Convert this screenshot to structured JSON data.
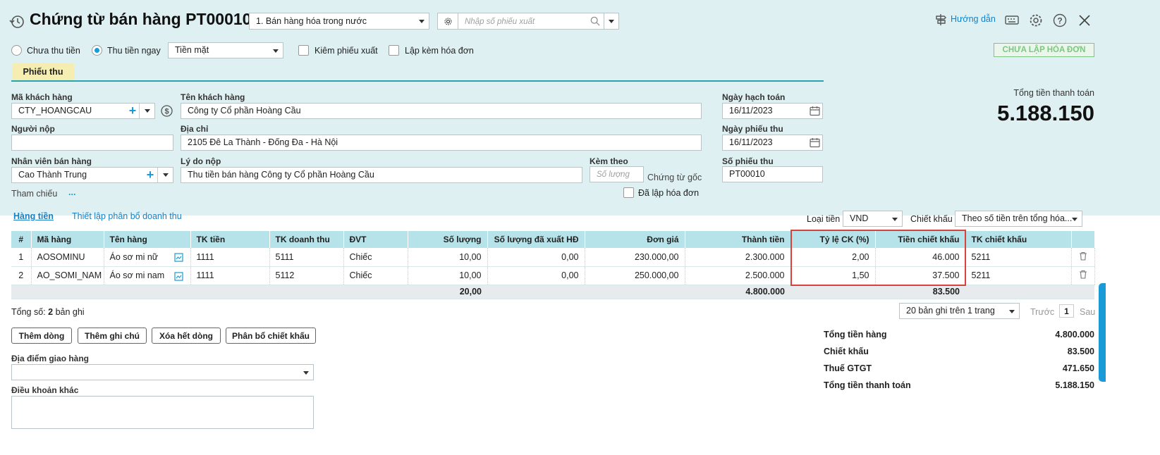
{
  "header": {
    "title": "Chứng từ bán hàng PT00010",
    "sale_type": "1. Bán hàng hóa trong nước",
    "export_search_placeholder": "Nhập số phiếu xuất",
    "guide_label": "Hướng dẫn",
    "invoice_status": "CHƯA LẬP HÓA ĐƠN"
  },
  "payment": {
    "unpaid_label": "Chưa thu tiền",
    "paid_now_label": "Thu tiền ngay",
    "selected": "paid_now",
    "method": "Tiền mặt",
    "include_export_label": "Kiêm phiếu xuất",
    "include_export_checked": false,
    "with_invoice_label": "Lập kèm hóa đơn",
    "with_invoice_checked": false
  },
  "tabs": [
    {
      "label": "Phiếu thu",
      "active": true
    }
  ],
  "form": {
    "customer_code_label": "Mã khách hàng",
    "customer_code": "CTY_HOANGCAU",
    "customer_name_label": "Tên khách hàng",
    "customer_name": "Công ty Cổ phần Hoàng Cầu",
    "payer_label": "Người nộp",
    "payer": "",
    "address_label": "Địa chỉ",
    "address": "2105 Đê La Thành - Đống Đa - Hà Nội",
    "salesperson_label": "Nhân viên bán hàng",
    "salesperson": "Cao Thành Trung",
    "reason_label": "Lý do nộp",
    "reason": "Thu tiền bán hàng Công ty Cổ phần Hoàng Cầu",
    "attach_label": "Kèm theo",
    "attach_placeholder": "Số lượng",
    "attach_suffix": "Chứng từ gốc",
    "reference_label": "Tham chiếu",
    "reference_link": "...",
    "invoiced_label": "Đã lập hóa đơn",
    "posting_date_label": "Ngày hạch toán",
    "posting_date": "16/11/2023",
    "receipt_date_label": "Ngày phiếu thu",
    "receipt_date": "16/11/2023",
    "receipt_no_label": "Số phiếu thu",
    "receipt_no": "PT00010"
  },
  "total_box": {
    "label": "Tổng tiền thanh toán",
    "value": "5.188.150"
  },
  "detail": {
    "tab_goods": "Hàng tiền",
    "tab_revenue": "Thiết lập phân bổ doanh thu",
    "currency_label": "Loại tiền",
    "currency": "VND",
    "discount_label": "Chiết khấu",
    "discount_mode": "Theo số tiền trên tổng hóa..."
  },
  "table": {
    "columns": [
      "#",
      "Mã hàng",
      "Tên hàng",
      "TK tiền",
      "TK doanh thu",
      "ĐVT",
      "Số lượng",
      "Số lượng đã xuất HĐ",
      "Đơn giá",
      "Thành tiền",
      "Tỷ lệ CK (%)",
      "Tiền chiết khấu",
      "TK chiết khấu"
    ],
    "rows": [
      {
        "no": "1",
        "code": "AOSOMINU",
        "name": "Áo sơ mi nữ",
        "cash_acc": "1111",
        "rev_acc": "5111",
        "unit": "Chiếc",
        "qty": "10,00",
        "qty_inv": "0,00",
        "price": "230.000,00",
        "amount": "2.300.000",
        "disc_rate": "2,00",
        "disc_amount": "46.000",
        "disc_acc": "5211"
      },
      {
        "no": "2",
        "code": "AO_SOMI_NAM",
        "name": "Áo sơ mi nam",
        "cash_acc": "1111",
        "rev_acc": "5112",
        "unit": "Chiếc",
        "qty": "10,00",
        "qty_inv": "0,00",
        "price": "250.000,00",
        "amount": "2.500.000",
        "disc_rate": "1,50",
        "disc_amount": "37.500",
        "disc_acc": "5211"
      }
    ],
    "footer": {
      "qty": "20,00",
      "amount": "4.800.000",
      "disc_amount": "83.500"
    }
  },
  "paging": {
    "total_prefix": "Tổng số:",
    "total_count": "2",
    "total_suffix": "bản ghi",
    "page_size": "20 bản ghi trên 1 trang",
    "prev": "Trước",
    "page": "1",
    "next": "Sau"
  },
  "actions": {
    "add_row": "Thêm dòng",
    "add_note": "Thêm ghi chú",
    "delete_all": "Xóa hết dòng",
    "allocate_discount": "Phân bổ chiết khấu"
  },
  "delivery": {
    "place_label": "Địa điểm giao hàng",
    "place": "",
    "terms_label": "Điều khoản khác",
    "terms": ""
  },
  "summary": [
    {
      "label": "Tổng tiền hàng",
      "value": "4.800.000"
    },
    {
      "label": "Chiết khấu",
      "value": "83.500"
    },
    {
      "label": "Thuế GTGT",
      "value": "471.650"
    },
    {
      "label": "Tổng tiền thanh toán",
      "value": "5.188.150"
    }
  ],
  "colors": {
    "header_bg": "#dff0f2",
    "table_header_bg": "#b6e3ea",
    "accent": "#1a9ad6",
    "highlight_border": "#d9423a",
    "tab_active_bg": "#f6edb2",
    "status_green": "#7dc67f"
  }
}
